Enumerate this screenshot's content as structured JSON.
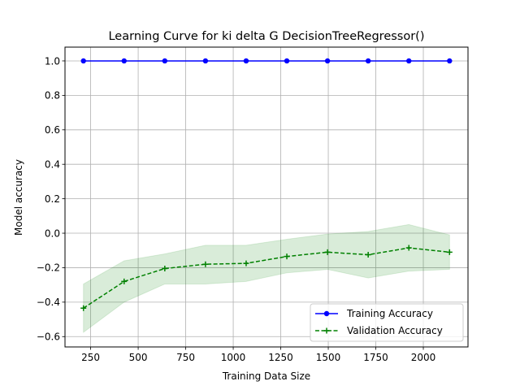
{
  "chart_data": {
    "type": "line",
    "title": "Learning Curve for ki delta G DecisionTreeRegressor()",
    "xlabel": "Training Data Size",
    "ylabel": "Model accuracy",
    "xlim": [
      115,
      2235
    ],
    "ylim": [
      -0.66,
      1.08
    ],
    "xticks": [
      250,
      500,
      750,
      1000,
      1250,
      1500,
      1750,
      2000
    ],
    "yticks": [
      -0.6,
      -0.4,
      -0.2,
      0.0,
      0.2,
      0.4,
      0.6,
      0.8,
      1.0
    ],
    "xtick_labels": [
      "250",
      "500",
      "750",
      "1000",
      "1250",
      "1500",
      "1750",
      "2000"
    ],
    "ytick_labels": [
      "−0.6",
      "−0.4",
      "−0.2",
      "0.0",
      "0.2",
      "0.4",
      "0.6",
      "0.8",
      "1.0"
    ],
    "grid": true,
    "legend_position": "lower right",
    "x": [
      212,
      426,
      640,
      854,
      1068,
      1282,
      1496,
      1710,
      1924,
      2138
    ],
    "series": [
      {
        "name": "Training Accuracy",
        "color": "#0000ff",
        "linestyle": "solid",
        "marker": "circle",
        "values": [
          1.0,
          1.0,
          1.0,
          1.0,
          1.0,
          1.0,
          1.0,
          1.0,
          1.0,
          1.0
        ]
      },
      {
        "name": "Validation Accuracy",
        "color": "#008000",
        "linestyle": "dashed",
        "marker": "plus",
        "values": [
          -0.435,
          -0.28,
          -0.205,
          -0.18,
          -0.175,
          -0.135,
          -0.11,
          -0.125,
          -0.085,
          -0.11
        ],
        "band_lower": [
          -0.575,
          -0.4,
          -0.295,
          -0.295,
          -0.28,
          -0.23,
          -0.21,
          -0.26,
          -0.22,
          -0.21
        ],
        "band_upper": [
          -0.295,
          -0.16,
          -0.12,
          -0.07,
          -0.07,
          -0.035,
          -0.005,
          0.01,
          0.05,
          -0.01
        ]
      }
    ]
  }
}
